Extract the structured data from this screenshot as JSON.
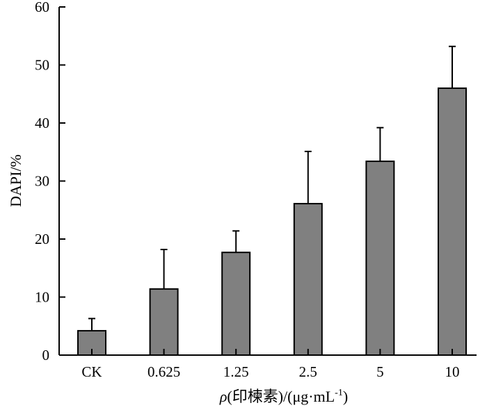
{
  "chart_data": {
    "type": "bar",
    "title": "",
    "xlabel_parts": {
      "symbol": "ρ",
      "middle": "(印楝素)/(μg·mL",
      "superscript": "-1",
      "end": ")"
    },
    "ylabel": "DAPI/%",
    "categories": [
      "CK",
      "0.625",
      "1.25",
      "2.5",
      "5",
      "10"
    ],
    "values": [
      4.2,
      11.4,
      17.7,
      26.1,
      33.4,
      46.0
    ],
    "error_upper": [
      2.1,
      6.8,
      3.7,
      9.0,
      5.8,
      7.2
    ],
    "ylim": [
      0,
      60
    ],
    "yticks": [
      0,
      10,
      20,
      30,
      40,
      50,
      60
    ],
    "grid": false,
    "bar_color": "#808080",
    "edge_color": "#000000"
  }
}
